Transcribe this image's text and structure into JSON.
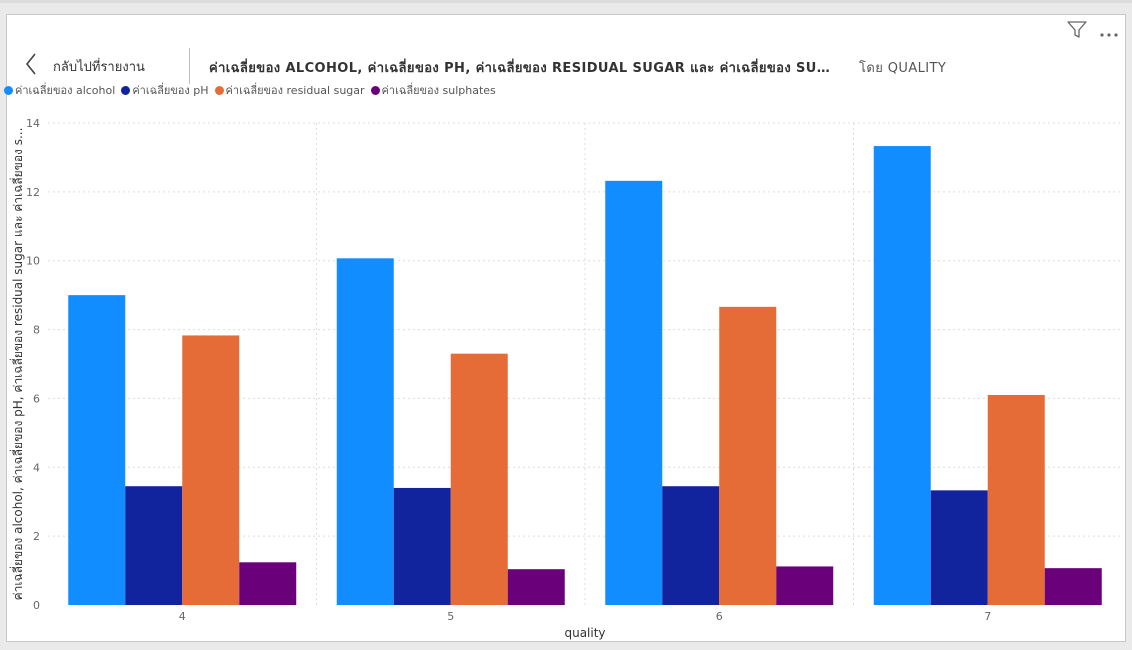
{
  "header": {
    "back_label": "กลับไปที่รายงาน",
    "title": "ค่าเฉลี่ยของ ALCOHOL, ค่าเฉลี่ยของ PH, ค่าเฉลี่ยของ RESIDUAL SUGAR และ ค่าเฉลี่ยของ SULPHATES",
    "byline": "โดย QUALITY"
  },
  "icons": {
    "filter": "filter-icon",
    "more": "more-options-icon",
    "back": "chevron-left-icon"
  },
  "colors": {
    "alcohol": "#118DFF",
    "ph": "#12239E",
    "residual_sugar": "#E66C37",
    "sulphates": "#6B007B"
  },
  "chart_data": {
    "type": "bar",
    "title": "",
    "xlabel": "quality",
    "ylabel": "ค่าเฉลี่ยของ alcohol, ค่าเฉลี่ยของ pH, ค่าเฉลี่ยของ residual sugar และ ค่าเฉลี่ยของ s...",
    "ylim": [
      0,
      14
    ],
    "yticks": [
      "0",
      "2",
      "4",
      "6",
      "8",
      "10",
      "12",
      "14"
    ],
    "grid": true,
    "legend_position": "top-left",
    "categories": [
      "4",
      "5",
      "6",
      "7"
    ],
    "series": [
      {
        "name": "ค่าเฉลี่ยของ alcohol",
        "color": "#118DFF",
        "values": [
          9.0,
          10.07,
          12.32,
          13.33
        ]
      },
      {
        "name": "ค่าเฉลี่ยของ pH",
        "color": "#12239E",
        "values": [
          3.45,
          3.4,
          3.45,
          3.33
        ]
      },
      {
        "name": "ค่าเฉลี่ยของ residual sugar",
        "color": "#E66C37",
        "values": [
          7.83,
          7.3,
          8.66,
          6.1
        ]
      },
      {
        "name": "ค่าเฉลี่ยของ sulphates",
        "color": "#6B007B",
        "values": [
          1.24,
          1.04,
          1.12,
          1.07
        ]
      }
    ]
  }
}
